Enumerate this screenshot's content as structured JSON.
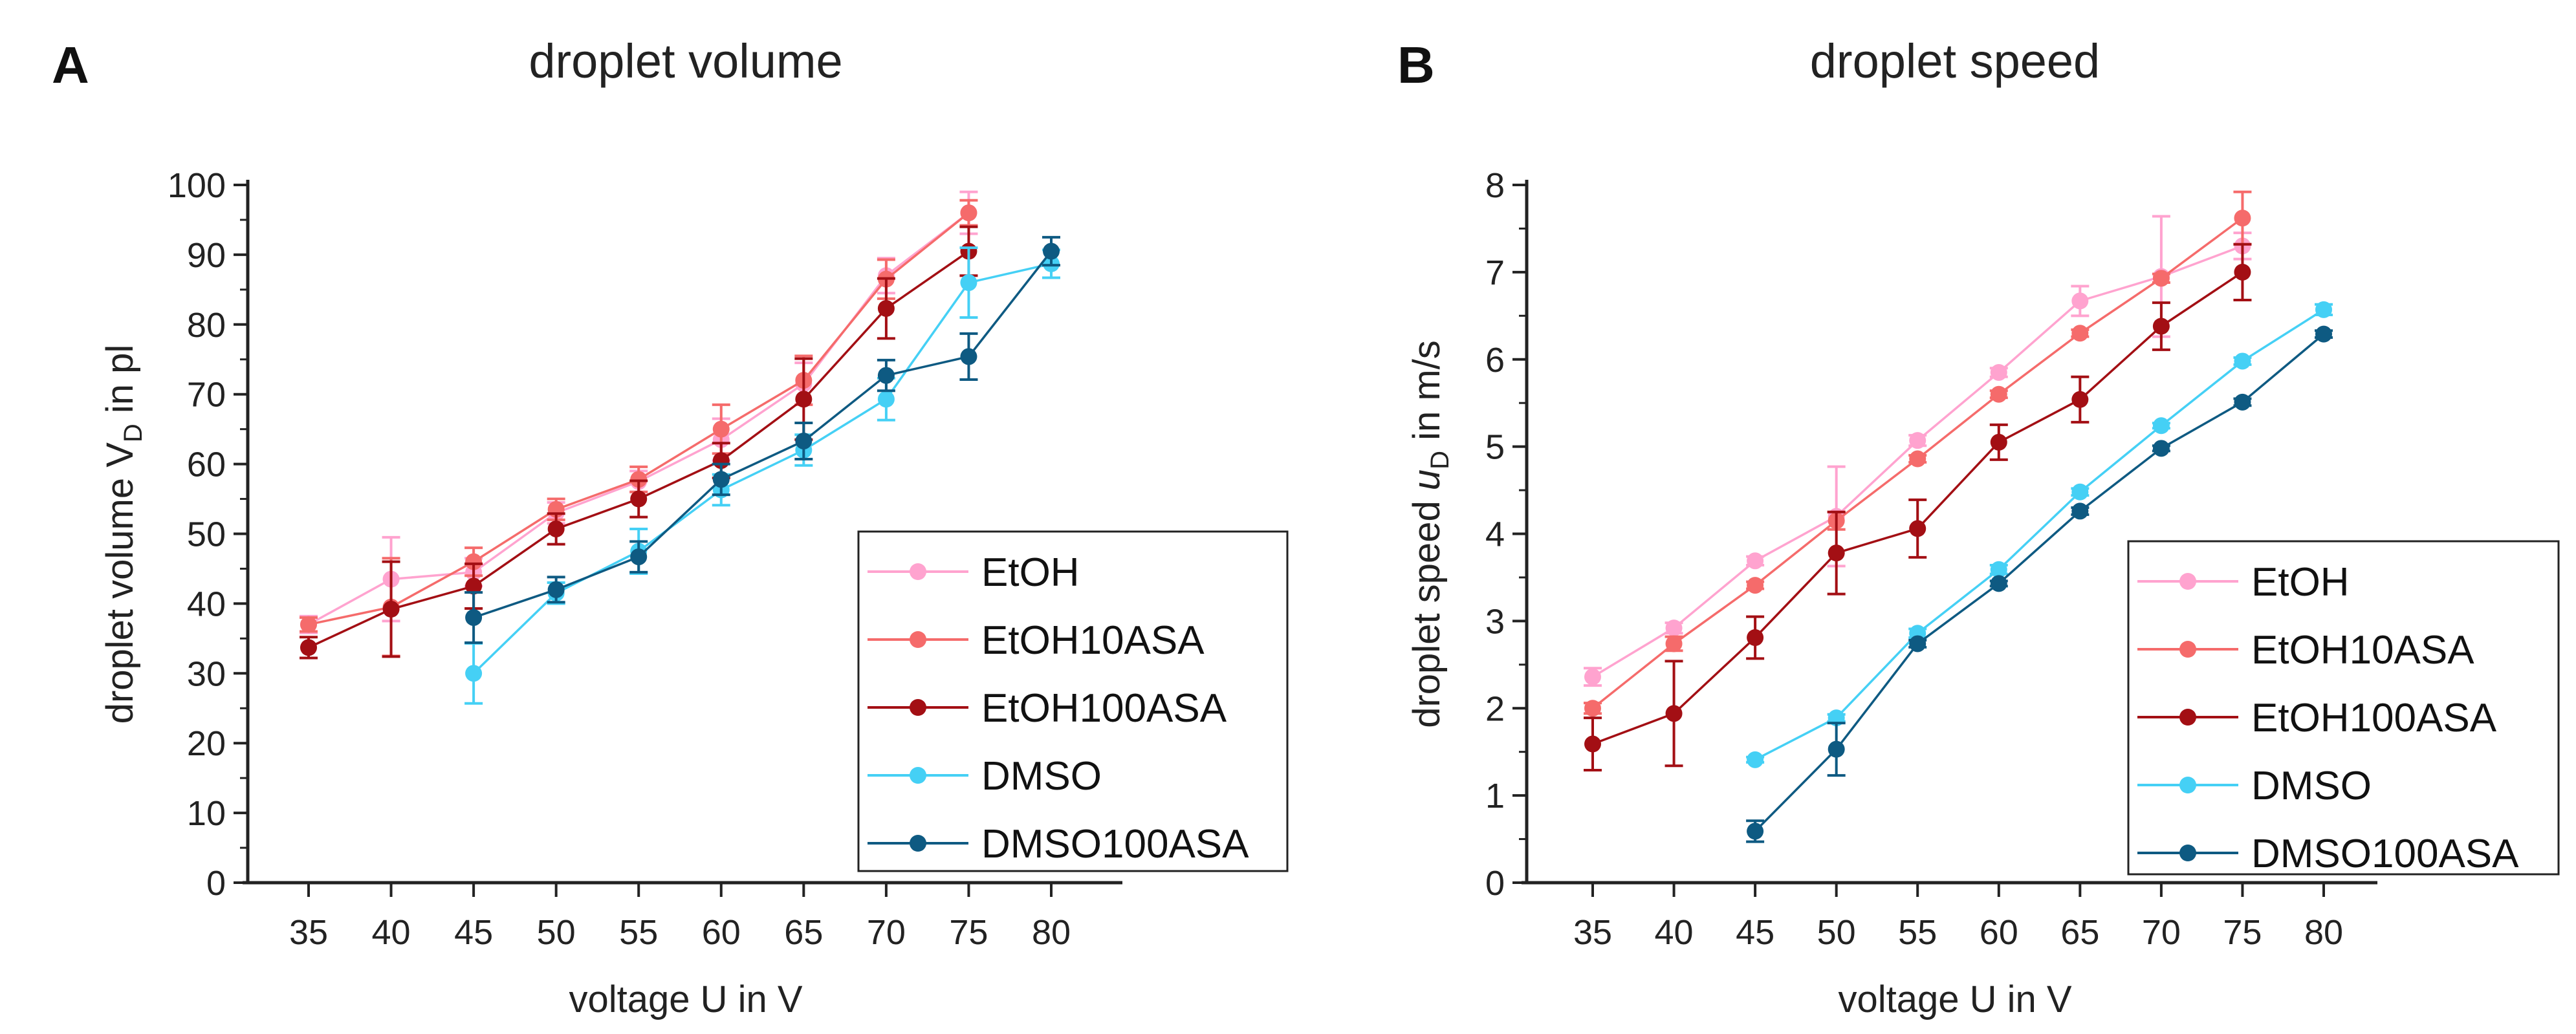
{
  "panels": [
    {
      "letter": "A",
      "title": "droplet volume",
      "ylabel_pre": "droplet volume V",
      "ylabel_sub": "D",
      "ylabel_post": " in pl",
      "ylabel_italic": "",
      "xlabel": "voltage U in V"
    },
    {
      "letter": "B",
      "title": "droplet speed",
      "ylabel_pre": "droplet speed ",
      "ylabel_italic": "u",
      "ylabel_sub": "D",
      "ylabel_post": " in m/s",
      "xlabel": "voltage U in V"
    }
  ],
  "chart_data": [
    {
      "type": "line",
      "title": "droplet volume",
      "xlabel": "voltage U in V",
      "ylabel": "droplet volume V_D in pl",
      "x": [
        35,
        40,
        45,
        50,
        55,
        60,
        65,
        70,
        75,
        80
      ],
      "ylim": [
        0,
        100
      ],
      "yticks": [
        0,
        10,
        20,
        30,
        40,
        50,
        60,
        70,
        80,
        90,
        100
      ],
      "legend": "bottom-right",
      "grid": false,
      "series": [
        {
          "name": "EtOH",
          "color": "#ffa3cf",
          "values": [
            37,
            43.5,
            44.5,
            53,
            57.5,
            63.5,
            71.5,
            87,
            96,
            null
          ],
          "err": [
            1.2,
            6,
            2,
            1.5,
            1.5,
            3,
            3,
            2.5,
            3,
            null
          ]
        },
        {
          "name": "EtOH10ASA",
          "color": "#f56b6b",
          "values": [
            37,
            39.5,
            46,
            53.5,
            57.8,
            65,
            72,
            86.5,
            96,
            null
          ],
          "err": [
            1,
            7,
            2,
            1.5,
            1.8,
            3.5,
            3.5,
            2.8,
            1.8,
            null
          ]
        },
        {
          "name": "EtOH100ASA",
          "color": "#a30f14",
          "values": [
            33.7,
            39.2,
            42.5,
            50.7,
            55,
            60.5,
            69.3,
            82.3,
            90.5,
            null
          ],
          "err": [
            1.5,
            6.8,
            3.2,
            2.2,
            2.6,
            2.5,
            5.8,
            4.3,
            3.5,
            null
          ]
        },
        {
          "name": "DMSO",
          "color": "#45d0f5",
          "values": [
            null,
            null,
            30,
            41.5,
            47.5,
            56.3,
            62,
            69.3,
            86,
            88.7
          ],
          "err": [
            null,
            null,
            4.3,
            1.5,
            3.2,
            2.2,
            2.2,
            3,
            5,
            2
          ]
        },
        {
          "name": "DMSO100ASA",
          "color": "#0e5a82",
          "values": [
            null,
            null,
            38,
            42,
            46.7,
            57.8,
            63.3,
            72.7,
            75.4,
            90.5
          ],
          "err": [
            null,
            null,
            3.6,
            1.8,
            2.2,
            2.2,
            2.6,
            2.2,
            3.3,
            2
          ]
        }
      ]
    },
    {
      "type": "line",
      "title": "droplet speed",
      "xlabel": "voltage U in V",
      "ylabel": "droplet speed u_D in m/s",
      "x": [
        35,
        40,
        45,
        50,
        55,
        60,
        65,
        70,
        75,
        80
      ],
      "ylim": [
        0,
        8
      ],
      "yticks": [
        0,
        1,
        2,
        3,
        4,
        5,
        6,
        7,
        8
      ],
      "legend": "bottom-right",
      "grid": false,
      "series": [
        {
          "name": "EtOH",
          "color": "#ffa3cf",
          "values": [
            2.36,
            2.92,
            3.69,
            4.2,
            5.07,
            5.85,
            6.67,
            6.95,
            7.3,
            null
          ],
          "err": [
            0.1,
            0.06,
            0.05,
            0.57,
            0.06,
            0.05,
            0.17,
            0.69,
            0.15,
            null
          ]
        },
        {
          "name": "EtOH10ASA",
          "color": "#f56b6b",
          "values": [
            2.0,
            2.74,
            3.41,
            4.15,
            4.86,
            5.6,
            6.3,
            6.93,
            7.62,
            null
          ],
          "err": [
            0.06,
            0.08,
            0.04,
            0.1,
            0.04,
            0.04,
            0.04,
            0.05,
            0.3,
            null
          ]
        },
        {
          "name": "EtOH100ASA",
          "color": "#a30f14",
          "values": [
            1.59,
            1.94,
            2.81,
            3.78,
            4.06,
            5.05,
            5.54,
            6.38,
            7.0,
            null
          ],
          "err": [
            0.3,
            0.6,
            0.24,
            0.47,
            0.33,
            0.2,
            0.26,
            0.27,
            0.32,
            null
          ]
        },
        {
          "name": "DMSO",
          "color": "#45d0f5",
          "values": [
            null,
            null,
            1.41,
            1.89,
            2.86,
            3.59,
            4.48,
            5.24,
            5.98,
            6.57
          ],
          "err": [
            null,
            null,
            0.03,
            0.04,
            0.05,
            0.05,
            0.04,
            0.03,
            0.04,
            0.06
          ]
        },
        {
          "name": "DMSO100ASA",
          "color": "#0e5a82",
          "values": [
            null,
            null,
            0.59,
            1.53,
            2.74,
            3.43,
            4.26,
            4.98,
            5.51,
            6.29
          ],
          "err": [
            null,
            null,
            0.12,
            0.3,
            0.04,
            0.03,
            0.04,
            0.03,
            0.04,
            0.04
          ]
        }
      ]
    }
  ]
}
